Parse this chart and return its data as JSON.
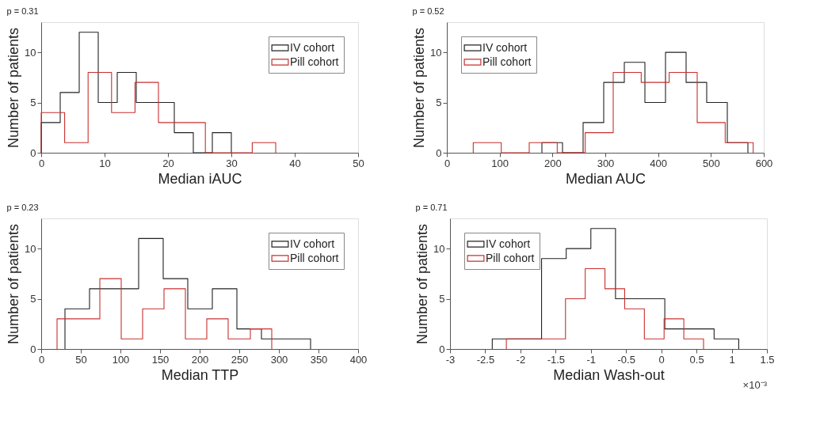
{
  "chart_data": [
    {
      "type": "step",
      "annotations": [
        "p = 0.31"
      ],
      "xlabel": "Median iAUC",
      "ylabel": "Number of patients",
      "legend": "top right",
      "grid": false,
      "xlim": [
        0,
        50
      ],
      "xticks": [
        0,
        10,
        20,
        30,
        40,
        50
      ],
      "ylim": [
        0,
        13
      ],
      "yticks": [
        0,
        5,
        10
      ],
      "series": [
        {
          "name": "IV cohort",
          "color": "#222222",
          "x": [
            0,
            0,
            3,
            6,
            9,
            12,
            15,
            18,
            21,
            24,
            27,
            30
          ],
          "values": [
            0,
            3,
            6,
            12,
            5,
            8,
            5,
            5,
            2,
            0,
            2,
            0
          ]
        },
        {
          "name": "Pill cohort",
          "color": "#c8302f",
          "x": [
            0,
            0,
            3.7,
            7.4,
            11.1,
            14.8,
            18.5,
            22.2,
            25.9,
            29.6,
            33.3,
            37
          ],
          "values": [
            0,
            4,
            1,
            8,
            4,
            7,
            3,
            3,
            0,
            0,
            1,
            0
          ]
        }
      ]
    },
    {
      "type": "step",
      "annotations": [
        "p = 0.52"
      ],
      "xlabel": "Median AUC",
      "ylabel": "Number of patients",
      "legend": "top left",
      "grid": false,
      "xlim": [
        0,
        600
      ],
      "xticks": [
        0,
        100,
        200,
        300,
        400,
        500,
        600
      ],
      "ylim": [
        0,
        13
      ],
      "yticks": [
        0,
        5,
        10
      ],
      "series": [
        {
          "name": "IV cohort",
          "color": "#222222",
          "x": [
            180,
            180,
            219,
            258,
            297,
            336,
            375,
            414,
            453,
            492,
            531,
            570
          ],
          "values": [
            0,
            1,
            0,
            3,
            7,
            9,
            5,
            10,
            7,
            5,
            1,
            0
          ]
        },
        {
          "name": "Pill cohort",
          "color": "#c8302f",
          "x": [
            50,
            50,
            103,
            156,
            209,
            262,
            315,
            368,
            421,
            474,
            527,
            580
          ],
          "values": [
            0,
            1,
            0,
            1,
            0,
            2,
            8,
            7,
            8,
            3,
            1,
            0
          ]
        }
      ]
    },
    {
      "type": "step",
      "annotations": [
        "p = 0.23"
      ],
      "xlabel": "Median TTP",
      "ylabel": "Number of patients",
      "legend": "top right",
      "grid": false,
      "xlim": [
        0,
        400
      ],
      "xticks": [
        0,
        50,
        100,
        150,
        200,
        250,
        300,
        350,
        400
      ],
      "ylim": [
        0,
        13
      ],
      "yticks": [
        0,
        5,
        10
      ],
      "series": [
        {
          "name": "IV cohort",
          "color": "#222222",
          "x": [
            30,
            30,
            61,
            92,
            123,
            154,
            185,
            216,
            247,
            278,
            309,
            340
          ],
          "values": [
            0,
            4,
            6,
            6,
            11,
            7,
            4,
            6,
            2,
            1,
            1,
            0
          ]
        },
        {
          "name": "Pill cohort",
          "color": "#c8302f",
          "x": [
            20,
            20,
            47,
            74,
            101,
            128,
            155,
            182,
            209,
            236,
            264,
            291
          ],
          "values": [
            0,
            3,
            3,
            7,
            1,
            4,
            6,
            1,
            3,
            1,
            2,
            0
          ]
        }
      ]
    },
    {
      "type": "step",
      "annotations": [
        "p = 0.71",
        "×10⁻³"
      ],
      "xlabel": "Median Wash-out",
      "ylabel": "Number of patients",
      "legend": "top left",
      "grid": false,
      "xlim": [
        -3,
        1.5
      ],
      "xticks": [
        -3,
        -2.5,
        -2,
        -1.5,
        -1,
        -0.5,
        0,
        0.5,
        1,
        1.5
      ],
      "ylim": [
        0,
        13
      ],
      "yticks": [
        0,
        5,
        10
      ],
      "series": [
        {
          "name": "IV cohort",
          "color": "#222222",
          "x": [
            -2.4,
            -2.4,
            -2.05,
            -1.7,
            -1.35,
            -1.0,
            -0.65,
            -0.3,
            0.05,
            0.4,
            0.75,
            1.1
          ],
          "values": [
            0,
            1,
            1,
            9,
            10,
            12,
            5,
            5,
            2,
            2,
            1,
            0
          ]
        },
        {
          "name": "Pill cohort",
          "color": "#c8302f",
          "x": [
            -2.2,
            -2.2,
            -1.92,
            -1.64,
            -1.36,
            -1.08,
            -0.8,
            -0.52,
            -0.24,
            0.04,
            0.32,
            0.6
          ],
          "values": [
            0,
            1,
            1,
            1,
            5,
            8,
            6,
            4,
            1,
            3,
            1,
            0
          ]
        }
      ]
    }
  ]
}
